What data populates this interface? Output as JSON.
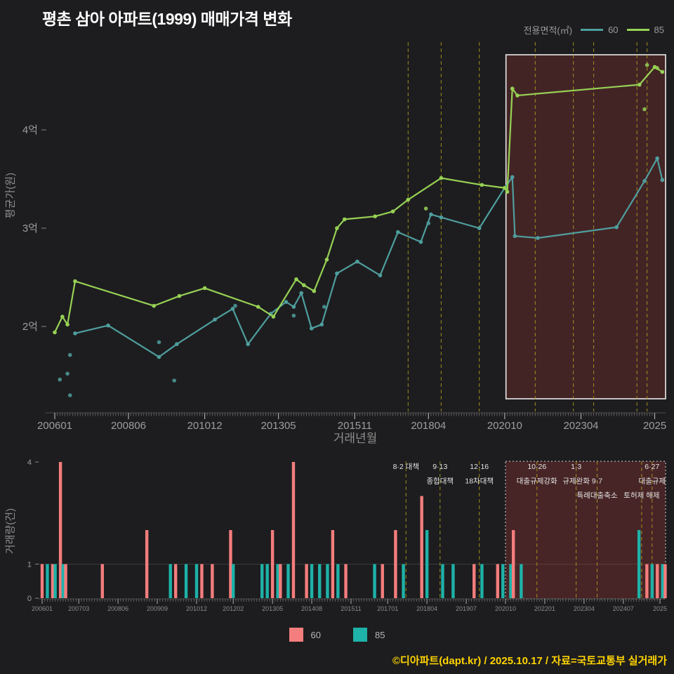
{
  "page": {
    "title": "평촌 삼아 아파트(1999) 매매가격 변화",
    "footer": "©디아파트(dapt.kr) / 2025.10.17 / 자료=국토교통부 실거래가"
  },
  "legend_top": {
    "title": "전용면적(㎡)",
    "items": [
      {
        "label": "60",
        "color": "#4f9e9e"
      },
      {
        "label": "85",
        "color": "#97d154"
      }
    ]
  },
  "legend_bottom": {
    "items": [
      {
        "label": "60",
        "color": "#f47d7d"
      },
      {
        "label": "85",
        "color": "#1eb2a8"
      }
    ]
  },
  "chart_data": [
    {
      "type": "line",
      "title": "평촌 삼아 아파트(1999) 매매가격 변화",
      "xlabel": "거래년월",
      "ylabel": "평균가(원)",
      "unit": "억원",
      "x_unit": "months since 2006-01",
      "ylim": [
        1.25,
        4.8
      ],
      "grid": false,
      "y_ticks": [
        {
          "v": 2,
          "label": "2억"
        },
        {
          "v": 3,
          "label": "3억"
        },
        {
          "v": 4,
          "label": "4억"
        }
      ],
      "x_ticks": [
        {
          "m": 0,
          "label": "200601"
        },
        {
          "m": 29,
          "label": "200806"
        },
        {
          "m": 59,
          "label": "201012"
        },
        {
          "m": 88,
          "label": "201305"
        },
        {
          "m": 118,
          "label": "201511"
        },
        {
          "m": 147,
          "label": "201804"
        },
        {
          "m": 177,
          "label": "202010"
        },
        {
          "m": 207,
          "label": "202304"
        },
        {
          "m": 236,
          "label": "2025"
        }
      ],
      "series": [
        {
          "name": "60",
          "color": "#4f9e9e",
          "points": [
            [
              8,
              1.93
            ],
            [
              21,
              2.01
            ],
            [
              41,
              1.69
            ],
            [
              48,
              1.82
            ],
            [
              63,
              2.07
            ],
            [
              70,
              2.18
            ],
            [
              76,
              1.82
            ],
            [
              85,
              2.13
            ],
            [
              91,
              2.25
            ],
            [
              94,
              2.2
            ],
            [
              97,
              2.34
            ],
            [
              101,
              1.98
            ],
            [
              105,
              2.02
            ],
            [
              111,
              2.54
            ],
            [
              119,
              2.66
            ],
            [
              128,
              2.52
            ],
            [
              135,
              2.96
            ],
            [
              144,
              2.86
            ],
            [
              148,
              3.14
            ],
            [
              152,
              3.11
            ],
            [
              167,
              3.0
            ],
            [
              177,
              3.41
            ],
            [
              180,
              3.52
            ],
            [
              181,
              2.92
            ],
            [
              190,
              2.9
            ],
            [
              221,
              3.01
            ],
            [
              232,
              3.48
            ],
            [
              237,
              3.71
            ],
            [
              239,
              3.49
            ]
          ]
        },
        {
          "name": "85",
          "color": "#97d154",
          "points": [
            [
              0,
              1.94
            ],
            [
              3,
              2.1
            ],
            [
              5,
              2.02
            ],
            [
              8,
              2.46
            ],
            [
              39,
              2.21
            ],
            [
              49,
              2.31
            ],
            [
              59,
              2.39
            ],
            [
              80,
              2.2
            ],
            [
              86,
              2.1
            ],
            [
              95,
              2.48
            ],
            [
              98,
              2.42
            ],
            [
              102,
              2.36
            ],
            [
              107,
              2.68
            ],
            [
              111,
              3.0
            ],
            [
              114,
              3.09
            ],
            [
              126,
              3.12
            ],
            [
              133,
              3.17
            ],
            [
              139,
              3.29
            ],
            [
              152,
              3.51
            ],
            [
              168,
              3.44
            ],
            [
              177,
              3.41
            ],
            [
              178,
              3.37
            ],
            [
              180,
              4.42
            ],
            [
              182,
              4.35
            ],
            [
              230,
              4.46
            ],
            [
              236,
              4.64
            ],
            [
              239,
              4.59
            ]
          ]
        }
      ],
      "extra_points": [
        [
          "60",
          2,
          1.46
        ],
        [
          "60",
          5,
          1.52
        ],
        [
          "60",
          6,
          1.71
        ],
        [
          "60",
          6,
          1.3
        ],
        [
          "60",
          41,
          1.84
        ],
        [
          "60",
          47,
          1.45
        ],
        [
          "60",
          71,
          2.21
        ],
        [
          "60",
          94,
          2.11
        ],
        [
          "60",
          106,
          2.2
        ],
        [
          "60",
          147,
          3.05
        ],
        [
          "85",
          146,
          3.2
        ],
        [
          "85",
          232,
          4.21
        ],
        [
          "85",
          233,
          4.66
        ],
        [
          "85",
          237,
          4.63
        ]
      ],
      "highlight_region": {
        "from_m": 177.5,
        "to_m": 240
      },
      "events": [
        {
          "m": 139,
          "labels": [
            {
              "text": "8·2 대책",
              "row": 0
            }
          ]
        },
        {
          "m": 152,
          "labels": [
            {
              "text": "9·13",
              "row": 0
            },
            {
              "text": "종합대책",
              "row": 1
            }
          ]
        },
        {
          "m": 167,
          "labels": [
            {
              "text": "12·16",
              "row": 0
            },
            {
              "text": "18차대책",
              "row": 1
            }
          ]
        },
        {
          "m": 189,
          "labels": [
            {
              "text": "10·26",
              "row": 0
            },
            {
              "text": "대출규제강화",
              "row": 1
            }
          ]
        },
        {
          "m": 204,
          "labels": [
            {
              "text": "1·3",
              "row": 0
            },
            {
              "text": "규제완화",
              "row": 1
            }
          ]
        },
        {
          "m": 212,
          "labels": [
            {
              "text": "9·7",
              "row": 1
            },
            {
              "text": "특례대출축소",
              "row": 2
            }
          ]
        },
        {
          "m": 229,
          "labels": [
            {
              "text": "토허제 해제",
              "row": 2
            }
          ]
        },
        {
          "m": 233,
          "labels": [
            {
              "text": "6·27",
              "row": 0
            },
            {
              "text": "대출규제",
              "row": 1
            }
          ]
        }
      ]
    },
    {
      "type": "bar",
      "xlabel": "",
      "ylabel": "거래량(건)",
      "ylim": [
        0,
        4
      ],
      "y_ticks": [
        0,
        1,
        4
      ],
      "x_ticks": [
        {
          "m": 0,
          "label": "200601"
        },
        {
          "m": 14,
          "label": "200703"
        },
        {
          "m": 29,
          "label": "200806"
        },
        {
          "m": 44,
          "label": "200909"
        },
        {
          "m": 59,
          "label": "201012"
        },
        {
          "m": 73,
          "label": "201202"
        },
        {
          "m": 88,
          "label": "201305"
        },
        {
          "m": 103,
          "label": "201408"
        },
        {
          "m": 118,
          "label": "201511"
        },
        {
          "m": 132,
          "label": "201701"
        },
        {
          "m": 147,
          "label": "201804"
        },
        {
          "m": 162,
          "label": "201907"
        },
        {
          "m": 177,
          "label": "202010"
        },
        {
          "m": 192,
          "label": "202201"
        },
        {
          "m": 207,
          "label": "202304"
        },
        {
          "m": 222,
          "label": "202407"
        },
        {
          "m": 236,
          "label": "2025"
        }
      ],
      "series": [
        {
          "name": "60",
          "color": "#f47d7d"
        },
        {
          "name": "85",
          "color": "#1eb2a8"
        }
      ],
      "bars": [
        [
          0,
          "60",
          1
        ],
        [
          2,
          "85",
          1
        ],
        [
          4,
          "60",
          1
        ],
        [
          5,
          "85",
          1
        ],
        [
          7,
          "60",
          4
        ],
        [
          8,
          "85",
          1
        ],
        [
          9,
          "60",
          1
        ],
        [
          23,
          "60",
          1
        ],
        [
          40,
          "60",
          2
        ],
        [
          49,
          "85",
          1
        ],
        [
          51,
          "60",
          1
        ],
        [
          55,
          "85",
          1
        ],
        [
          59,
          "85",
          1
        ],
        [
          61,
          "60",
          1
        ],
        [
          65,
          "60",
          1
        ],
        [
          72,
          "60",
          2
        ],
        [
          73,
          "85",
          1
        ],
        [
          84,
          "85",
          1
        ],
        [
          86,
          "85",
          1
        ],
        [
          88,
          "60",
          2
        ],
        [
          90,
          "85",
          1
        ],
        [
          91,
          "60",
          1
        ],
        [
          94,
          "85",
          1
        ],
        [
          96,
          "60",
          4
        ],
        [
          101,
          "60",
          1
        ],
        [
          103,
          "85",
          1
        ],
        [
          106,
          "85",
          1
        ],
        [
          109,
          "85",
          1
        ],
        [
          111,
          "60",
          2
        ],
        [
          113,
          "85",
          1
        ],
        [
          116,
          "60",
          1
        ],
        [
          127,
          "85",
          1
        ],
        [
          130,
          "60",
          1
        ],
        [
          135,
          "60",
          2
        ],
        [
          138,
          "85",
          1
        ],
        [
          145,
          "60",
          3
        ],
        [
          147,
          "85",
          2
        ],
        [
          153,
          "85",
          1
        ],
        [
          157,
          "85",
          1
        ],
        [
          165,
          "60",
          1
        ],
        [
          168,
          "85",
          1
        ],
        [
          174,
          "60",
          1
        ],
        [
          176,
          "85",
          1
        ],
        [
          179,
          "85",
          1
        ],
        [
          180,
          "60",
          2
        ],
        [
          183,
          "85",
          1
        ],
        [
          228,
          "85",
          2
        ],
        [
          231,
          "60",
          1
        ],
        [
          233,
          "85",
          1
        ],
        [
          235,
          "60",
          1
        ],
        [
          237,
          "85",
          1
        ],
        [
          238,
          "60",
          1
        ]
      ],
      "highlight_region": {
        "from_m": 177,
        "to_m": 240
      }
    }
  ]
}
